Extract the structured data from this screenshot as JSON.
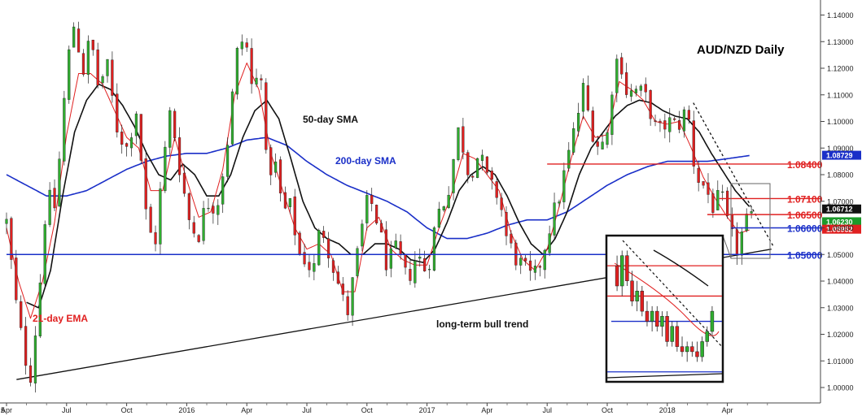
{
  "chart_data": {
    "type": "candlestick",
    "title": "AUD/NZD Daily",
    "subtitle": "",
    "xlabel": "",
    "ylabel": "",
    "ylim": [
      0.995,
      1.145
    ],
    "y_ticks": [
      1.0,
      1.01,
      1.02,
      1.03,
      1.04,
      1.05,
      1.06,
      1.07,
      1.08,
      1.09,
      1.1,
      1.11,
      1.12,
      1.13,
      1.14
    ],
    "y_tick_labels": [
      "1.00000",
      "1.01000",
      "1.02000",
      "1.03000",
      "1.04000",
      "1.05000",
      "1.06000",
      "1.07000",
      "1.08000",
      "1.09000",
      "1.10000",
      "1.11000",
      "1.12000",
      "1.13000",
      "1.14000"
    ],
    "x_tick_labels": [
      "Apr",
      "Jul",
      "Oct",
      "2016",
      "Apr",
      "Jul",
      "Oct",
      "2017",
      "Apr",
      "Jul",
      "Oct",
      "2018",
      "Apr"
    ],
    "x_ticks_months": [
      0,
      3,
      6,
      9,
      12,
      15,
      18,
      21,
      24,
      27,
      30,
      33,
      36
    ],
    "x_start_label": "5",
    "x_end_month": 38.8,
    "grid": false,
    "price_path": [
      {
        "m": 0.0,
        "v": 1.062
      },
      {
        "m": 0.5,
        "v": 1.03
      },
      {
        "m": 0.9,
        "v": 1.012
      },
      {
        "m": 1.2,
        "v": 1.005
      },
      {
        "m": 1.6,
        "v": 1.032
      },
      {
        "m": 2.0,
        "v": 1.072
      },
      {
        "m": 2.4,
        "v": 1.068
      },
      {
        "m": 2.7,
        "v": 1.09
      },
      {
        "m": 3.0,
        "v": 1.12
      },
      {
        "m": 3.4,
        "v": 1.138
      },
      {
        "m": 3.8,
        "v": 1.118
      },
      {
        "m": 4.2,
        "v": 1.132
      },
      {
        "m": 4.6,
        "v": 1.112
      },
      {
        "m": 5.0,
        "v": 1.122
      },
      {
        "m": 5.5,
        "v": 1.098
      },
      {
        "m": 6.0,
        "v": 1.09
      },
      {
        "m": 6.5,
        "v": 1.105
      },
      {
        "m": 7.0,
        "v": 1.062
      },
      {
        "m": 7.4,
        "v": 1.053
      },
      {
        "m": 7.8,
        "v": 1.082
      },
      {
        "m": 8.2,
        "v": 1.105
      },
      {
        "m": 8.7,
        "v": 1.08
      },
      {
        "m": 9.2,
        "v": 1.06
      },
      {
        "m": 9.6,
        "v": 1.058
      },
      {
        "m": 10.0,
        "v": 1.07
      },
      {
        "m": 10.5,
        "v": 1.068
      },
      {
        "m": 11.0,
        "v": 1.09
      },
      {
        "m": 11.5,
        "v": 1.125
      },
      {
        "m": 11.9,
        "v": 1.133
      },
      {
        "m": 12.3,
        "v": 1.11
      },
      {
        "m": 12.7,
        "v": 1.122
      },
      {
        "m": 13.0,
        "v": 1.08
      },
      {
        "m": 13.4,
        "v": 1.085
      },
      {
        "m": 13.8,
        "v": 1.066
      },
      {
        "m": 14.2,
        "v": 1.068
      },
      {
        "m": 14.6,
        "v": 1.05
      },
      {
        "m": 15.0,
        "v": 1.048
      },
      {
        "m": 15.3,
        "v": 1.042
      },
      {
        "m": 15.7,
        "v": 1.062
      },
      {
        "m": 16.2,
        "v": 1.049
      },
      {
        "m": 16.6,
        "v": 1.038
      },
      {
        "m": 17.0,
        "v": 1.027
      },
      {
        "m": 17.3,
        "v": 1.04
      },
      {
        "m": 17.7,
        "v": 1.058
      },
      {
        "m": 18.1,
        "v": 1.072
      },
      {
        "m": 18.5,
        "v": 1.063
      },
      {
        "m": 19.0,
        "v": 1.046
      },
      {
        "m": 19.5,
        "v": 1.052
      },
      {
        "m": 20.0,
        "v": 1.04
      },
      {
        "m": 20.5,
        "v": 1.05
      },
      {
        "m": 21.0,
        "v": 1.043
      },
      {
        "m": 21.5,
        "v": 1.065
      },
      {
        "m": 22.0,
        "v": 1.072
      },
      {
        "m": 22.6,
        "v": 1.098
      },
      {
        "m": 23.1,
        "v": 1.08
      },
      {
        "m": 23.6,
        "v": 1.088
      },
      {
        "m": 24.1,
        "v": 1.076
      },
      {
        "m": 24.6,
        "v": 1.072
      },
      {
        "m": 25.0,
        "v": 1.055
      },
      {
        "m": 25.5,
        "v": 1.048
      },
      {
        "m": 25.9,
        "v": 1.044
      },
      {
        "m": 26.3,
        "v": 1.04
      },
      {
        "m": 26.7,
        "v": 1.048
      },
      {
        "m": 27.1,
        "v": 1.06
      },
      {
        "m": 27.6,
        "v": 1.072
      },
      {
        "m": 28.0,
        "v": 1.085
      },
      {
        "m": 28.4,
        "v": 1.098
      },
      {
        "m": 28.8,
        "v": 1.112
      },
      {
        "m": 29.2,
        "v": 1.098
      },
      {
        "m": 29.6,
        "v": 1.09
      },
      {
        "m": 30.0,
        "v": 1.095
      },
      {
        "m": 30.3,
        "v": 1.118
      },
      {
        "m": 30.6,
        "v": 1.126
      },
      {
        "m": 31.0,
        "v": 1.11
      },
      {
        "m": 31.5,
        "v": 1.112
      },
      {
        "m": 32.0,
        "v": 1.108
      },
      {
        "m": 32.5,
        "v": 1.095
      },
      {
        "m": 33.0,
        "v": 1.1
      },
      {
        "m": 33.5,
        "v": 1.098
      },
      {
        "m": 34.0,
        "v": 1.105
      },
      {
        "m": 34.4,
        "v": 1.08
      },
      {
        "m": 34.9,
        "v": 1.075
      },
      {
        "m": 35.3,
        "v": 1.068
      },
      {
        "m": 35.7,
        "v": 1.072
      },
      {
        "m": 36.1,
        "v": 1.058
      },
      {
        "m": 36.5,
        "v": 1.052
      },
      {
        "m": 36.9,
        "v": 1.062
      },
      {
        "m": 37.2,
        "v": 1.0623
      }
    ],
    "ema21_path": [
      {
        "m": 0.0,
        "v": 1.06
      },
      {
        "m": 0.6,
        "v": 1.04
      },
      {
        "m": 1.2,
        "v": 1.026
      },
      {
        "m": 1.8,
        "v": 1.04
      },
      {
        "m": 2.4,
        "v": 1.062
      },
      {
        "m": 3.0,
        "v": 1.095
      },
      {
        "m": 3.6,
        "v": 1.118
      },
      {
        "m": 4.2,
        "v": 1.118
      },
      {
        "m": 4.8,
        "v": 1.114
      },
      {
        "m": 5.4,
        "v": 1.104
      },
      {
        "m": 6.0,
        "v": 1.094
      },
      {
        "m": 6.6,
        "v": 1.09
      },
      {
        "m": 7.2,
        "v": 1.074
      },
      {
        "m": 7.8,
        "v": 1.074
      },
      {
        "m": 8.4,
        "v": 1.094
      },
      {
        "m": 9.0,
        "v": 1.078
      },
      {
        "m": 9.6,
        "v": 1.064
      },
      {
        "m": 10.2,
        "v": 1.066
      },
      {
        "m": 10.8,
        "v": 1.082
      },
      {
        "m": 11.4,
        "v": 1.11
      },
      {
        "m": 12.0,
        "v": 1.122
      },
      {
        "m": 12.6,
        "v": 1.112
      },
      {
        "m": 13.2,
        "v": 1.088
      },
      {
        "m": 13.8,
        "v": 1.074
      },
      {
        "m": 14.4,
        "v": 1.06
      },
      {
        "m": 15.0,
        "v": 1.052
      },
      {
        "m": 15.6,
        "v": 1.054
      },
      {
        "m": 16.2,
        "v": 1.05
      },
      {
        "m": 16.8,
        "v": 1.036
      },
      {
        "m": 17.4,
        "v": 1.036
      },
      {
        "m": 18.0,
        "v": 1.06
      },
      {
        "m": 18.6,
        "v": 1.064
      },
      {
        "m": 19.2,
        "v": 1.052
      },
      {
        "m": 19.8,
        "v": 1.048
      },
      {
        "m": 20.4,
        "v": 1.046
      },
      {
        "m": 21.0,
        "v": 1.046
      },
      {
        "m": 21.6,
        "v": 1.06
      },
      {
        "m": 22.2,
        "v": 1.072
      },
      {
        "m": 22.8,
        "v": 1.088
      },
      {
        "m": 23.4,
        "v": 1.086
      },
      {
        "m": 24.0,
        "v": 1.08
      },
      {
        "m": 24.6,
        "v": 1.074
      },
      {
        "m": 25.2,
        "v": 1.058
      },
      {
        "m": 25.8,
        "v": 1.048
      },
      {
        "m": 26.4,
        "v": 1.044
      },
      {
        "m": 27.0,
        "v": 1.052
      },
      {
        "m": 27.6,
        "v": 1.068
      },
      {
        "m": 28.2,
        "v": 1.086
      },
      {
        "m": 28.8,
        "v": 1.102
      },
      {
        "m": 29.4,
        "v": 1.094
      },
      {
        "m": 30.0,
        "v": 1.095
      },
      {
        "m": 30.6,
        "v": 1.115
      },
      {
        "m": 31.2,
        "v": 1.112
      },
      {
        "m": 31.8,
        "v": 1.108
      },
      {
        "m": 32.4,
        "v": 1.1
      },
      {
        "m": 33.0,
        "v": 1.099
      },
      {
        "m": 33.6,
        "v": 1.1
      },
      {
        "m": 34.2,
        "v": 1.09
      },
      {
        "m": 34.8,
        "v": 1.079
      },
      {
        "m": 35.4,
        "v": 1.071
      },
      {
        "m": 36.0,
        "v": 1.064
      },
      {
        "m": 36.6,
        "v": 1.058
      },
      {
        "m": 37.2,
        "v": 1.0595
      }
    ],
    "sma50_path": [
      {
        "m": 1.0,
        "v": 1.032
      },
      {
        "m": 1.6,
        "v": 1.03
      },
      {
        "m": 2.2,
        "v": 1.044
      },
      {
        "m": 2.8,
        "v": 1.072
      },
      {
        "m": 3.4,
        "v": 1.096
      },
      {
        "m": 4.0,
        "v": 1.108
      },
      {
        "m": 4.6,
        "v": 1.114
      },
      {
        "m": 5.2,
        "v": 1.112
      },
      {
        "m": 5.8,
        "v": 1.106
      },
      {
        "m": 6.4,
        "v": 1.098
      },
      {
        "m": 7.0,
        "v": 1.088
      },
      {
        "m": 7.6,
        "v": 1.08
      },
      {
        "m": 8.2,
        "v": 1.078
      },
      {
        "m": 8.8,
        "v": 1.084
      },
      {
        "m": 9.4,
        "v": 1.08
      },
      {
        "m": 10.0,
        "v": 1.072
      },
      {
        "m": 10.6,
        "v": 1.072
      },
      {
        "m": 11.2,
        "v": 1.08
      },
      {
        "m": 11.8,
        "v": 1.094
      },
      {
        "m": 12.4,
        "v": 1.104
      },
      {
        "m": 13.0,
        "v": 1.108
      },
      {
        "m": 13.6,
        "v": 1.101
      },
      {
        "m": 14.2,
        "v": 1.086
      },
      {
        "m": 14.8,
        "v": 1.07
      },
      {
        "m": 15.4,
        "v": 1.06
      },
      {
        "m": 16.0,
        "v": 1.056
      },
      {
        "m": 16.6,
        "v": 1.054
      },
      {
        "m": 17.2,
        "v": 1.05
      },
      {
        "m": 17.8,
        "v": 1.05
      },
      {
        "m": 18.4,
        "v": 1.054
      },
      {
        "m": 19.0,
        "v": 1.054
      },
      {
        "m": 19.6,
        "v": 1.052
      },
      {
        "m": 20.2,
        "v": 1.048
      },
      {
        "m": 20.8,
        "v": 1.047
      },
      {
        "m": 21.4,
        "v": 1.052
      },
      {
        "m": 22.0,
        "v": 1.062
      },
      {
        "m": 22.6,
        "v": 1.074
      },
      {
        "m": 23.2,
        "v": 1.08
      },
      {
        "m": 23.8,
        "v": 1.083
      },
      {
        "m": 24.4,
        "v": 1.08
      },
      {
        "m": 25.0,
        "v": 1.072
      },
      {
        "m": 25.6,
        "v": 1.062
      },
      {
        "m": 26.2,
        "v": 1.054
      },
      {
        "m": 26.8,
        "v": 1.05
      },
      {
        "m": 27.4,
        "v": 1.056
      },
      {
        "m": 28.0,
        "v": 1.066
      },
      {
        "m": 28.6,
        "v": 1.08
      },
      {
        "m": 29.2,
        "v": 1.09
      },
      {
        "m": 29.8,
        "v": 1.096
      },
      {
        "m": 30.4,
        "v": 1.102
      },
      {
        "m": 31.0,
        "v": 1.106
      },
      {
        "m": 31.6,
        "v": 1.108
      },
      {
        "m": 32.2,
        "v": 1.107
      },
      {
        "m": 32.8,
        "v": 1.104
      },
      {
        "m": 33.4,
        "v": 1.102
      },
      {
        "m": 34.0,
        "v": 1.101
      },
      {
        "m": 34.6,
        "v": 1.096
      },
      {
        "m": 35.2,
        "v": 1.088
      },
      {
        "m": 35.8,
        "v": 1.081
      },
      {
        "m": 36.4,
        "v": 1.074
      },
      {
        "m": 37.2,
        "v": 1.0671
      }
    ],
    "sma200_path": [
      {
        "m": 0.0,
        "v": 1.08
      },
      {
        "m": 1.0,
        "v": 1.076
      },
      {
        "m": 2.0,
        "v": 1.072
      },
      {
        "m": 3.0,
        "v": 1.072
      },
      {
        "m": 4.0,
        "v": 1.074
      },
      {
        "m": 5.0,
        "v": 1.078
      },
      {
        "m": 6.0,
        "v": 1.082
      },
      {
        "m": 7.0,
        "v": 1.085
      },
      {
        "m": 8.0,
        "v": 1.087
      },
      {
        "m": 9.0,
        "v": 1.088
      },
      {
        "m": 10.0,
        "v": 1.088
      },
      {
        "m": 11.0,
        "v": 1.09
      },
      {
        "m": 12.0,
        "v": 1.093
      },
      {
        "m": 13.0,
        "v": 1.094
      },
      {
        "m": 14.0,
        "v": 1.091
      },
      {
        "m": 15.0,
        "v": 1.085
      },
      {
        "m": 16.0,
        "v": 1.08
      },
      {
        "m": 17.0,
        "v": 1.076
      },
      {
        "m": 18.0,
        "v": 1.073
      },
      {
        "m": 19.0,
        "v": 1.07
      },
      {
        "m": 20.0,
        "v": 1.066
      },
      {
        "m": 21.0,
        "v": 1.06
      },
      {
        "m": 22.0,
        "v": 1.056
      },
      {
        "m": 23.0,
        "v": 1.056
      },
      {
        "m": 24.0,
        "v": 1.058
      },
      {
        "m": 25.0,
        "v": 1.061
      },
      {
        "m": 26.0,
        "v": 1.063
      },
      {
        "m": 27.0,
        "v": 1.063
      },
      {
        "m": 28.0,
        "v": 1.066
      },
      {
        "m": 29.0,
        "v": 1.071
      },
      {
        "m": 30.0,
        "v": 1.076
      },
      {
        "m": 31.0,
        "v": 1.08
      },
      {
        "m": 32.0,
        "v": 1.083
      },
      {
        "m": 33.0,
        "v": 1.085
      },
      {
        "m": 34.0,
        "v": 1.085
      },
      {
        "m": 35.0,
        "v": 1.085
      },
      {
        "m": 36.0,
        "v": 1.086
      },
      {
        "m": 37.2,
        "v": 1.0873
      }
    ],
    "horizontal_levels": [
      {
        "label": "1.08400",
        "value": 1.084,
        "color": "#e02020",
        "start_month": 27.0,
        "label_bold": true
      },
      {
        "label": "1.07100",
        "value": 1.071,
        "color": "#e02020",
        "start_month": 35.6,
        "label_bold": true
      },
      {
        "label": "1.06500",
        "value": 1.065,
        "color": "#e02020",
        "start_month": 35.0,
        "label_bold": true
      },
      {
        "label": "1.06000",
        "value": 1.06,
        "color": "#1a2fc8",
        "start_month": 36.2,
        "label_bold": true
      },
      {
        "label": "1.05000",
        "value": 1.05,
        "color": "#1a2fc8",
        "start_month": 0.0,
        "label_bold": true
      }
    ],
    "price_tags": [
      {
        "label": "1.08729",
        "value": 1.0873,
        "bg": "#1a2fc8"
      },
      {
        "label": "1.06712",
        "value": 1.0671,
        "bg": "#111111"
      },
      {
        "label": "1.06230",
        "value": 1.0623,
        "bg": "#1b9a2a"
      },
      {
        "label": "1.05952",
        "value": 1.0595,
        "bg": "#e02020"
      }
    ],
    "trend_lines": [
      {
        "name": "long-term bull trend",
        "from": {
          "m": 0.5,
          "v": 1.003
        },
        "to": {
          "m": 38.2,
          "v": 1.052
        },
        "color": "#111111",
        "dashed": false
      },
      {
        "name": "falling resistance",
        "from": {
          "m": 34.3,
          "v": 1.107
        },
        "to": {
          "m": 38.3,
          "v": 1.053
        },
        "color": "#111111",
        "dashed": true
      }
    ],
    "annotations": [
      {
        "text": "21-day EMA",
        "color": "#e02020"
      },
      {
        "text": "50-day SMA",
        "color": "#111111"
      },
      {
        "text": "200-day SMA",
        "color": "#1a2fc8"
      },
      {
        "text": "long-term bull trend",
        "color": "#111111"
      }
    ],
    "inset": {
      "type": "candlestick",
      "description_colors": {
        "up": "#2fae2f",
        "down": "#e02020"
      },
      "candles": [
        {
          "o": 1.071,
          "h": 1.073,
          "l": 1.066,
          "c": 1.067
        },
        {
          "o": 1.067,
          "h": 1.074,
          "l": 1.065,
          "c": 1.073
        },
        {
          "o": 1.073,
          "h": 1.074,
          "l": 1.067,
          "c": 1.068
        },
        {
          "o": 1.068,
          "h": 1.07,
          "l": 1.063,
          "c": 1.064
        },
        {
          "o": 1.064,
          "h": 1.068,
          "l": 1.062,
          "c": 1.066
        },
        {
          "o": 1.066,
          "h": 1.067,
          "l": 1.061,
          "c": 1.062
        },
        {
          "o": 1.062,
          "h": 1.064,
          "l": 1.059,
          "c": 1.06
        },
        {
          "o": 1.06,
          "h": 1.063,
          "l": 1.058,
          "c": 1.062
        },
        {
          "o": 1.062,
          "h": 1.063,
          "l": 1.058,
          "c": 1.059
        },
        {
          "o": 1.059,
          "h": 1.062,
          "l": 1.057,
          "c": 1.061
        },
        {
          "o": 1.061,
          "h": 1.062,
          "l": 1.055,
          "c": 1.056
        },
        {
          "o": 1.056,
          "h": 1.06,
          "l": 1.055,
          "c": 1.059
        },
        {
          "o": 1.059,
          "h": 1.06,
          "l": 1.054,
          "c": 1.055
        },
        {
          "o": 1.055,
          "h": 1.057,
          "l": 1.053,
          "c": 1.054
        },
        {
          "o": 1.054,
          "h": 1.056,
          "l": 1.052,
          "c": 1.055
        },
        {
          "o": 1.055,
          "h": 1.056,
          "l": 1.053,
          "c": 1.054
        },
        {
          "o": 1.054,
          "h": 1.056,
          "l": 1.052,
          "c": 1.053
        },
        {
          "o": 1.053,
          "h": 1.057,
          "l": 1.052,
          "c": 1.056
        },
        {
          "o": 1.056,
          "h": 1.059,
          "l": 1.055,
          "c": 1.058
        },
        {
          "o": 1.058,
          "h": 1.063,
          "l": 1.057,
          "c": 1.062
        }
      ]
    }
  }
}
